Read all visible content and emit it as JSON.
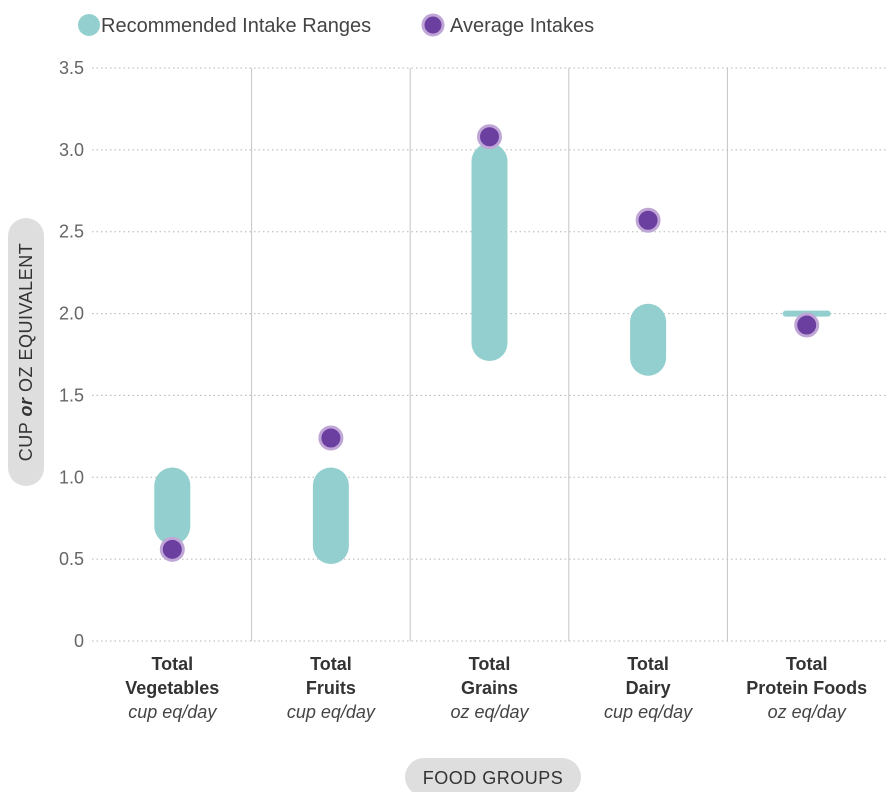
{
  "chart_data": {
    "type": "range-dot",
    "legend": [
      {
        "label": "Recommended Intake Ranges",
        "color": "#93cfcf"
      },
      {
        "label": "Average Intakes",
        "color": "#6b3fa0"
      }
    ],
    "ylabel": {
      "prefix": "CUP ",
      "connector": "or",
      "suffix": " OZ EQUIVALENT"
    },
    "xlabel": "FOOD GROUPS",
    "ylim": [
      0,
      3.5
    ],
    "yticks": [
      {
        "value": 0,
        "label": "0"
      },
      {
        "value": 0.5,
        "label": "0.5"
      },
      {
        "value": 1.0,
        "label": "1.0"
      },
      {
        "value": 1.5,
        "label": "1.5"
      },
      {
        "value": 2.0,
        "label": "2.0"
      },
      {
        "value": 2.5,
        "label": "2.5"
      },
      {
        "value": 3.0,
        "label": "3.0"
      },
      {
        "value": 3.5,
        "label": "3.5"
      }
    ],
    "categories": [
      {
        "name_lines": [
          "Total",
          "Vegetables"
        ],
        "unit": "cup eq/day",
        "range": [
          0.7,
          0.95
        ],
        "average": 0.56
      },
      {
        "name_lines": [
          "Total",
          "Fruits"
        ],
        "unit": "cup eq/day",
        "range": [
          0.58,
          0.95
        ],
        "average": 1.24
      },
      {
        "name_lines": [
          "Total",
          "Grains"
        ],
        "unit": "oz eq/day",
        "range": [
          1.82,
          2.93
        ],
        "average": 3.08
      },
      {
        "name_lines": [
          "Total",
          "Dairy"
        ],
        "unit": "cup eq/day",
        "range": [
          1.73,
          1.95
        ],
        "average": 2.57
      },
      {
        "name_lines": [
          "Total",
          "Protein Foods"
        ],
        "unit": "oz eq/day",
        "range": [
          2.0,
          2.0
        ],
        "average": 1.93
      }
    ],
    "grid": true,
    "legend_position": "top-left"
  }
}
